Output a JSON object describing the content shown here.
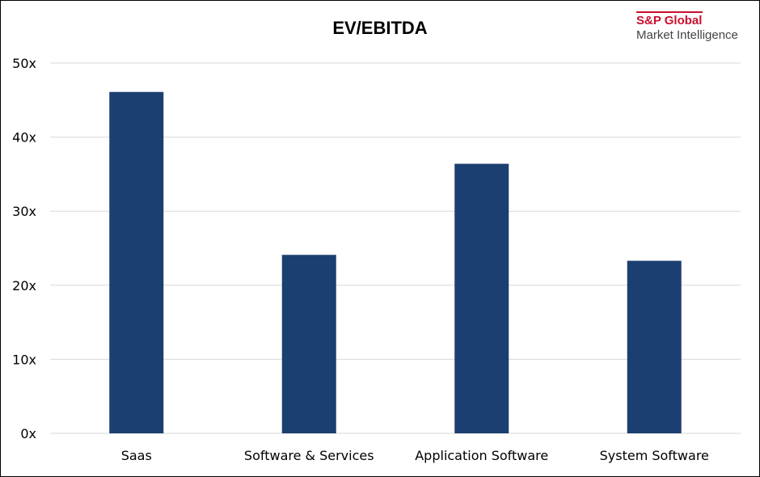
{
  "logo": {
    "brand": "S&P Global",
    "subtitle": "Market Intelligence",
    "brand_color": "#c8102e"
  },
  "chart_data": {
    "type": "bar",
    "title": "EV/EBITDA",
    "xlabel": "",
    "ylabel": "",
    "categories": [
      "Saas",
      "Software & Services",
      "Application Software",
      "System Software"
    ],
    "values": [
      46.1,
      24.1,
      36.4,
      23.3
    ],
    "ylim": [
      0,
      50
    ],
    "yticks": [
      0,
      10,
      20,
      30,
      40,
      50
    ],
    "ytick_labels": [
      "0x",
      "10x",
      "20x",
      "30x",
      "40x",
      "50x"
    ],
    "bar_color": "#1b3f70",
    "grid": true,
    "legend": "none"
  }
}
